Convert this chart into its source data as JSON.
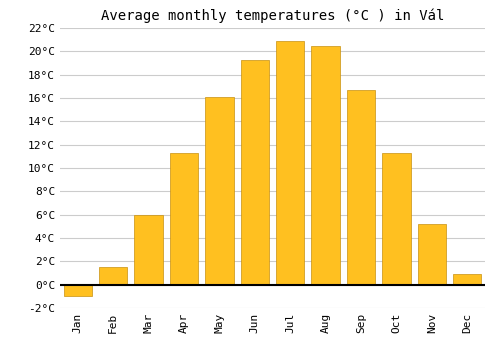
{
  "title": "Average monthly temperatures (°C ) in Vál",
  "months": [
    "Jan",
    "Feb",
    "Mar",
    "Apr",
    "May",
    "Jun",
    "Jul",
    "Aug",
    "Sep",
    "Oct",
    "Nov",
    "Dec"
  ],
  "values": [
    -1.0,
    1.5,
    6.0,
    11.3,
    16.1,
    19.3,
    20.9,
    20.5,
    16.7,
    11.3,
    5.2,
    0.9
  ],
  "bar_color": "#FFC020",
  "bar_edge_color": "#C89010",
  "background_color": "#ffffff",
  "grid_color": "#cccccc",
  "ylim": [
    -2,
    22
  ],
  "yticks": [
    -2,
    0,
    2,
    4,
    6,
    8,
    10,
    12,
    14,
    16,
    18,
    20,
    22
  ],
  "title_fontsize": 10,
  "tick_fontsize": 8,
  "figsize": [
    5.0,
    3.5
  ],
  "dpi": 100
}
